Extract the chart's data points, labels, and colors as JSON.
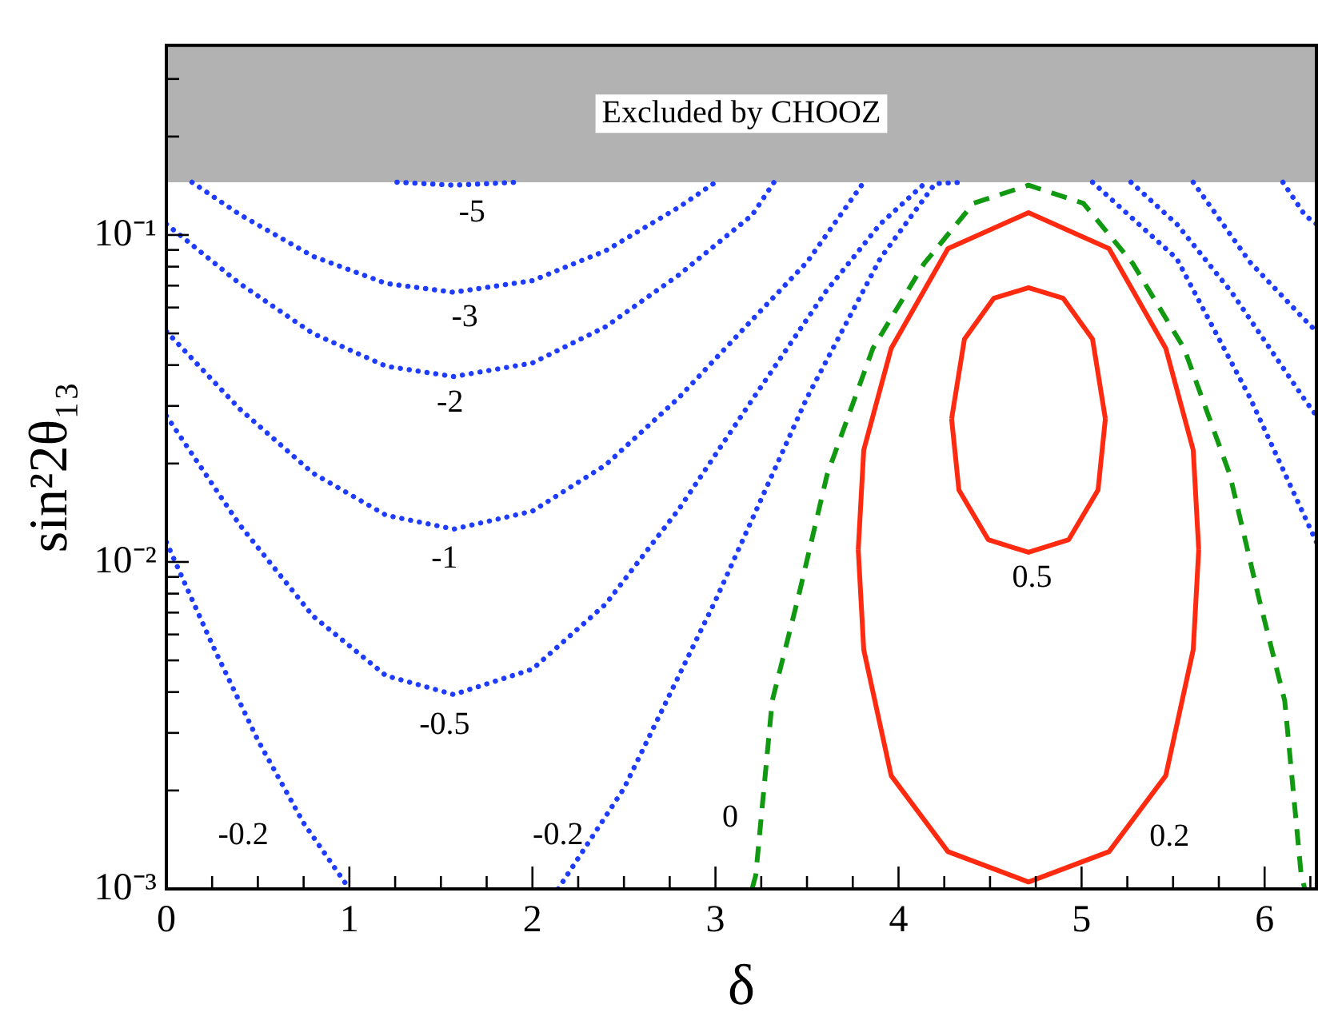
{
  "chart_data": {
    "type": "line",
    "xlabel": "δ",
    "ylabel": "sin²2θ₁₃",
    "log": "y",
    "marker": "none",
    "xlim": [
      0,
      6.283
    ],
    "ylim": [
      0.001,
      0.38
    ],
    "xticks": [
      0,
      {
        "value": 0.25,
        "label": null
      },
      {
        "value": 0.5,
        "label": null
      },
      {
        "value": 0.75,
        "label": null
      },
      1,
      {
        "value": 1.25,
        "label": null
      },
      {
        "value": 1.5,
        "label": null
      },
      {
        "value": 1.75,
        "label": null
      },
      2,
      {
        "value": 2.25,
        "label": null
      },
      {
        "value": 2.5,
        "label": null
      },
      {
        "value": 2.75,
        "label": null
      },
      3,
      {
        "value": 3.25,
        "label": null
      },
      {
        "value": 3.5,
        "label": null
      },
      {
        "value": 3.75,
        "label": null
      },
      4,
      {
        "value": 4.25,
        "label": null
      },
      {
        "value": 4.5,
        "label": null
      },
      {
        "value": 4.75,
        "label": null
      },
      5,
      {
        "value": 5.25,
        "label": null
      },
      {
        "value": 5.5,
        "label": null
      },
      {
        "value": 5.75,
        "label": null
      },
      6,
      {
        "value": 6.25,
        "label": null
      }
    ],
    "yticks": [
      {
        "value": 0.001,
        "label": "10⁻³"
      },
      {
        "value": 0.002,
        "label": null
      },
      {
        "value": 0.003,
        "label": null
      },
      {
        "value": 0.004,
        "label": null
      },
      {
        "value": 0.005,
        "label": null
      },
      {
        "value": 0.006,
        "label": null
      },
      {
        "value": 0.007,
        "label": null
      },
      {
        "value": 0.008,
        "label": null
      },
      {
        "value": 0.009,
        "label": null
      },
      {
        "value": 0.01,
        "label": "10⁻²"
      },
      {
        "value": 0.02,
        "label": null
      },
      {
        "value": 0.03,
        "label": null
      },
      {
        "value": 0.04,
        "label": null
      },
      {
        "value": 0.05,
        "label": null
      },
      {
        "value": 0.06,
        "label": null
      },
      {
        "value": 0.07,
        "label": null
      },
      {
        "value": 0.08,
        "label": null
      },
      {
        "value": 0.09,
        "label": null
      },
      {
        "value": 0.1,
        "label": "10⁻¹"
      },
      {
        "value": 0.2,
        "label": null
      },
      {
        "value": 0.3,
        "label": null
      }
    ],
    "bands": [
      {
        "axis": "y",
        "from": 0.145,
        "to": 0.38,
        "label": "Excluded by CHOOZ",
        "color": "#000000"
      }
    ],
    "series": [
      {
        "name": "-5",
        "color": "#1e3cff",
        "line_style": "dotted",
        "x": [
          1.26,
          1.57,
          1.92
        ],
        "values": [
          0.145,
          0.142,
          0.145
        ]
      },
      {
        "name": "-3",
        "color": "#1e3cff",
        "line_style": "dotted",
        "x": [
          0.14,
          0.4,
          0.8,
          1.2,
          1.57,
          2.0,
          2.4,
          2.8,
          3.0
        ],
        "values": [
          0.145,
          0.1156,
          0.0861,
          0.0711,
          0.0668,
          0.0725,
          0.0895,
          0.1216,
          0.145
        ]
      },
      {
        "name": "-2",
        "color": "#1e3cff",
        "line_style": "dotted",
        "x": [
          0,
          0.4,
          0.8,
          1.2,
          1.57,
          2.0,
          2.4,
          2.8,
          3.2,
          3.32,
          4.5,
          6.1,
          6.22,
          6.283
        ],
        "values": [
          0.108,
          0.0711,
          0.05,
          0.0397,
          0.0369,
          0.0406,
          0.0524,
          0.0755,
          0.115,
          0.145,
          null,
          0.145,
          0.115,
          0.108
        ]
      },
      {
        "name": "-1",
        "color": "#1e3cff",
        "line_style": "dotted",
        "x": [
          0,
          0.4,
          0.8,
          1.2,
          1.57,
          2.0,
          2.4,
          2.8,
          3.2,
          3.5,
          3.81,
          4.7,
          5.61,
          5.92,
          6.22,
          6.283
        ],
        "values": [
          0.0507,
          0.0294,
          0.0187,
          0.0139,
          0.0126,
          0.0143,
          0.0198,
          0.0318,
          0.055,
          0.0826,
          0.145,
          null,
          0.145,
          0.0826,
          0.055,
          0.0507
        ]
      },
      {
        "name": "-0.5",
        "color": "#1e3cff",
        "line_style": "dotted",
        "x": [
          0,
          0.4,
          0.8,
          1.2,
          1.57,
          2.0,
          2.4,
          2.8,
          3.2,
          3.6,
          3.9,
          4.15,
          4.7,
          5.27,
          5.52,
          5.82,
          6.22,
          6.283
        ],
        "values": [
          0.028,
          0.013,
          0.00684,
          0.00449,
          0.00393,
          0.0047,
          0.00743,
          0.0145,
          0.0313,
          0.0668,
          0.108,
          0.145,
          null,
          0.145,
          0.108,
          0.0668,
          0.0313,
          0.028
        ]
      },
      {
        "name": "-0.2",
        "color": "#1e3cff",
        "line_style": "dotted",
        "x": [
          0,
          0.25,
          0.5,
          0.75,
          1.0,
          1.6,
          2.14,
          2.5,
          3.0,
          3.5,
          3.9,
          4.2,
          4.36,
          4.7,
          5.06,
          5.52,
          5.92,
          6.283
        ],
        "values": [
          0.0115,
          0.0056,
          0.00285,
          0.00159,
          0.001,
          null,
          0.001,
          0.00203,
          0.00762,
          0.0318,
          0.0847,
          0.1436,
          0.145,
          null,
          0.145,
          0.0847,
          0.0318,
          0.0115
        ]
      },
      {
        "name": "0",
        "color": "#119911",
        "line_style": "dashed",
        "x": [
          3.2,
          3.22,
          3.31,
          3.45,
          3.61,
          3.86,
          4.14,
          4.41,
          4.71,
          5.01,
          5.28,
          5.56,
          5.81,
          5.97,
          6.11,
          6.2,
          6.22
        ],
        "values": [
          0.001,
          0.0011,
          0.00376,
          0.0077,
          0.0185,
          0.045,
          0.0818,
          0.125,
          0.142,
          0.125,
          0.0818,
          0.045,
          0.0185,
          0.0077,
          0.00376,
          0.0011,
          0.001
        ]
      },
      {
        "name": "0.2",
        "color": "#ff2a10",
        "line_style": "solid",
        "x": [
          3.78,
          3.81,
          3.96,
          4.27,
          4.71,
          5.15,
          5.46,
          5.61,
          5.64,
          4.71,
          3.78,
          3.81,
          3.96,
          4.27,
          4.71,
          5.15,
          5.46,
          5.61,
          5.64
        ],
        "values": [
          0.0109,
          0.022,
          0.045,
          0.0909,
          0.117,
          0.0909,
          0.045,
          0.022,
          0.0109,
          null,
          0.0109,
          0.00539,
          0.00222,
          0.0013,
          0.00105,
          0.0013,
          0.00222,
          0.00539,
          0.0109
        ]
      },
      {
        "name": "0.5",
        "color": "#ff2a10",
        "line_style": "solid",
        "x": [
          4.29,
          4.36,
          4.52,
          4.71,
          4.9,
          5.06,
          5.13,
          4.71,
          4.29,
          4.33,
          4.49,
          4.71,
          4.93,
          5.09,
          5.13
        ],
        "values": [
          0.0274,
          0.048,
          0.064,
          0.069,
          0.064,
          0.048,
          0.0274,
          null,
          0.0274,
          0.0166,
          0.0117,
          0.0107,
          0.0117,
          0.0166,
          0.0274
        ]
      }
    ]
  }
}
